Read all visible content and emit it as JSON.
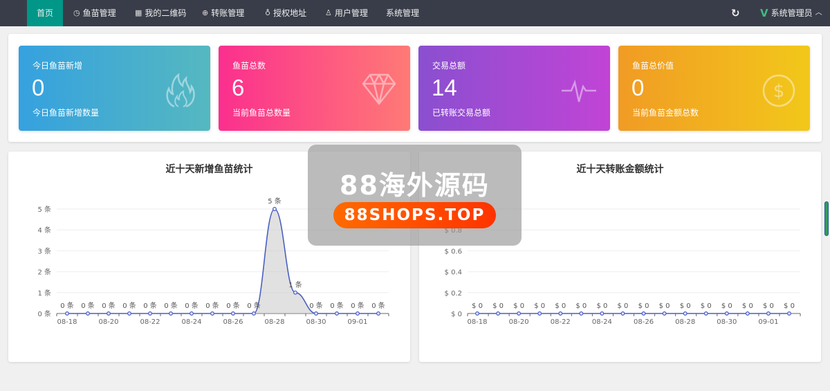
{
  "nav": {
    "items": [
      {
        "label": "首页",
        "icon": ""
      },
      {
        "label": "鱼苗管理",
        "icon": "clock-icon"
      },
      {
        "label": "我的二维码",
        "icon": "qrcode-icon"
      },
      {
        "label": "转账管理",
        "icon": "yen-icon"
      },
      {
        "label": "授权地址",
        "icon": "location-icon"
      },
      {
        "label": "用户管理",
        "icon": "user-icon"
      },
      {
        "label": "系统管理",
        "icon": ""
      }
    ],
    "user": "系统管理员",
    "active_color": "#009688"
  },
  "cards": [
    {
      "title": "今日鱼苗新增",
      "value": "0",
      "desc": "今日鱼苗新增数量",
      "icon": "fire-icon"
    },
    {
      "title": "鱼苗总数",
      "value": "6",
      "desc": "当前鱼苗总数量",
      "icon": "diamond-icon"
    },
    {
      "title": "交易总额",
      "value": "14",
      "desc": "已转账交易总额",
      "icon": "pulse-icon"
    },
    {
      "title": "鱼苗总价值",
      "value": "0",
      "desc": "当前鱼苗金额总数",
      "icon": "dollar-icon"
    }
  ],
  "watermark": {
    "title": "88海外源码",
    "url": "88SHOPS.TOP"
  },
  "chart_data": [
    {
      "type": "area",
      "title": "近十天新增鱼苗统计",
      "x": [
        "08-18",
        "08-19",
        "08-20",
        "08-21",
        "08-22",
        "08-23",
        "08-24",
        "08-25",
        "08-26",
        "08-27",
        "08-28",
        "08-29",
        "08-30",
        "08-31",
        "09-01",
        "09-02"
      ],
      "x_tick_labels": [
        "08-18",
        "08-20",
        "08-22",
        "08-24",
        "08-26",
        "08-28",
        "08-30",
        "09-01"
      ],
      "values": [
        0,
        0,
        0,
        0,
        0,
        0,
        0,
        0,
        0,
        0,
        5,
        1,
        0,
        0,
        0,
        0
      ],
      "unit_suffix": " 条",
      "ylim": [
        0,
        5
      ],
      "yticks": [
        0,
        1,
        2,
        3,
        4,
        5
      ],
      "smooth": true,
      "grid": true,
      "color": "#4a5fc1"
    },
    {
      "type": "line",
      "title": "近十天转账金额统计",
      "x": [
        "08-18",
        "08-19",
        "08-20",
        "08-21",
        "08-22",
        "08-23",
        "08-24",
        "08-25",
        "08-26",
        "08-27",
        "08-28",
        "08-29",
        "08-30",
        "08-31",
        "09-01",
        "09-02"
      ],
      "x_tick_labels": [
        "08-18",
        "08-20",
        "08-22",
        "08-24",
        "08-26",
        "08-28",
        "08-30",
        "09-01"
      ],
      "values": [
        0,
        0,
        0,
        0,
        0,
        0,
        0,
        0,
        0,
        0,
        0,
        0,
        0,
        0,
        0,
        0
      ],
      "unit_prefix": "$ ",
      "ylim": [
        0,
        1
      ],
      "yticks": [
        0,
        0.2,
        0.4,
        0.6,
        0.8,
        1
      ],
      "grid": true,
      "color": "#4a5fc1"
    }
  ]
}
